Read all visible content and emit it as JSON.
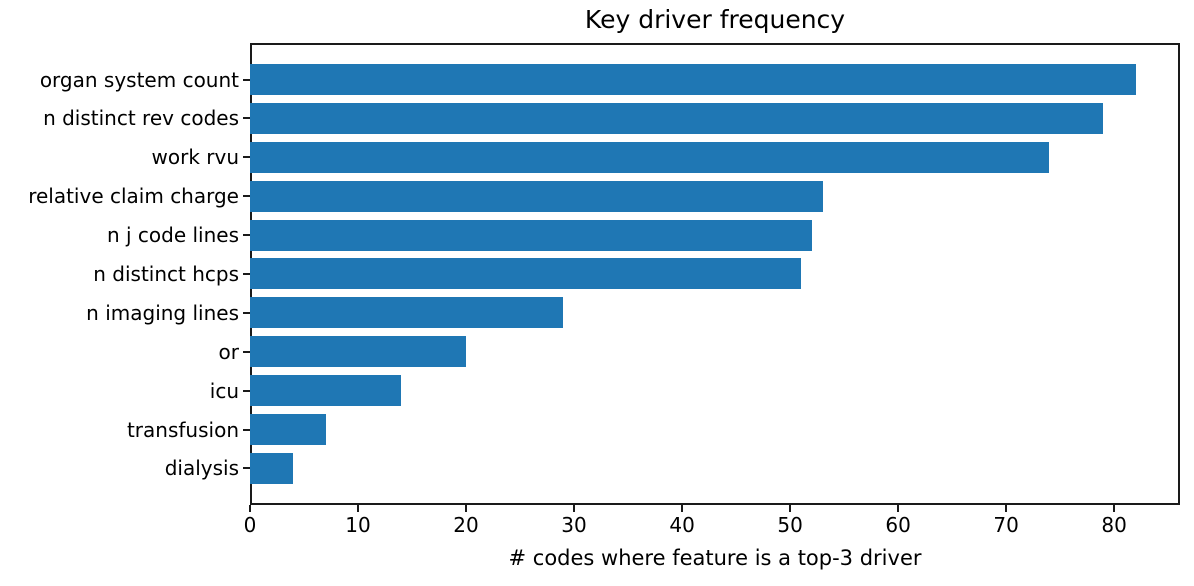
{
  "chart_data": {
    "type": "bar",
    "orientation": "horizontal",
    "title": "Key driver frequency",
    "xlabel": "# codes where feature is a top-3 driver",
    "categories": [
      "organ system count",
      "n distinct rev codes",
      "work rvu",
      "relative claim charge",
      "n j code lines",
      "n distinct hcps",
      "n imaging lines",
      "or",
      "icu",
      "transfusion",
      "dialysis"
    ],
    "values": [
      82,
      79,
      74,
      53,
      52,
      51,
      29,
      20,
      14,
      7,
      4
    ],
    "xticks": [
      0,
      10,
      20,
      30,
      40,
      50,
      60,
      70,
      80
    ],
    "xlim": [
      0,
      86.1
    ],
    "bar_color": "#1f77b4",
    "grid": false,
    "background_color": "#ffffff",
    "spine_color": "#1a1a1a"
  }
}
